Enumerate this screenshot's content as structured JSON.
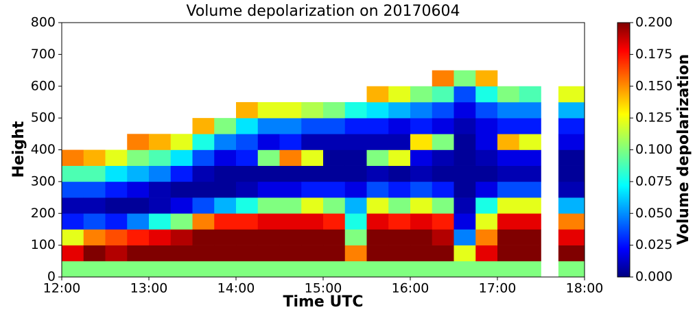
{
  "chart_data": {
    "type": "heatmap",
    "title": "Volume depolarization on 20170604",
    "xlabel": "Time UTC",
    "ylabel": "Height",
    "colorbar_label": "Volume depolarization",
    "colormap": "jet",
    "x_bins": [
      12,
      12.25,
      12.5,
      12.75,
      13,
      13.25,
      13.5,
      13.75,
      14,
      14.25,
      14.5,
      14.75,
      15,
      15.25,
      15.5,
      15.75,
      16,
      16.25,
      16.5,
      16.75,
      17,
      17.25,
      17.5,
      17.7,
      18
    ],
    "y_bins": [
      0,
      50,
      100,
      150,
      200,
      250,
      300,
      350,
      400,
      450,
      500,
      550,
      600,
      650
    ],
    "values": [
      [
        0.1,
        0.18,
        0.12,
        0.03,
        0.01,
        0.04,
        0.09,
        0.15,
        null,
        null,
        null,
        null,
        null
      ],
      [
        0.1,
        0.2,
        0.15,
        0.04,
        0.01,
        0.04,
        0.09,
        0.14,
        null,
        null,
        null,
        null,
        null
      ],
      [
        0.1,
        0.19,
        0.16,
        0.03,
        0.005,
        0.03,
        0.07,
        0.12,
        null,
        null,
        null,
        null,
        null
      ],
      [
        0.1,
        0.2,
        0.17,
        0.05,
        0.005,
        0.02,
        0.06,
        0.1,
        0.15,
        null,
        null,
        null,
        null
      ],
      [
        0.1,
        0.2,
        0.18,
        0.08,
        0.01,
        0.01,
        0.05,
        0.09,
        0.14,
        null,
        null,
        null,
        null
      ],
      [
        0.1,
        0.2,
        0.19,
        0.1,
        0.02,
        0.005,
        0.03,
        0.07,
        0.12,
        null,
        null,
        null,
        null
      ],
      [
        0.1,
        0.2,
        0.2,
        0.15,
        0.04,
        0.005,
        0.01,
        0.04,
        0.08,
        0.14,
        null,
        null,
        null
      ],
      [
        0.1,
        0.2,
        0.2,
        0.17,
        0.06,
        0.005,
        0.005,
        0.02,
        0.05,
        0.1,
        null,
        null,
        null
      ],
      [
        0.1,
        0.2,
        0.2,
        0.17,
        0.08,
        0.01,
        0.005,
        0.03,
        0.04,
        0.07,
        0.14,
        null,
        null
      ],
      [
        0.1,
        0.2,
        0.2,
        0.18,
        0.1,
        0.02,
        0.005,
        0.1,
        0.02,
        0.05,
        0.12,
        null,
        null
      ],
      [
        0.1,
        0.2,
        0.2,
        0.18,
        0.1,
        0.02,
        0.005,
        0.15,
        0.03,
        0.05,
        0.12,
        null,
        null
      ],
      [
        0.1,
        0.2,
        0.2,
        0.18,
        0.12,
        0.03,
        0.005,
        0.12,
        0.01,
        0.04,
        0.11,
        null,
        null
      ],
      [
        0.1,
        0.2,
        0.2,
        0.17,
        0.1,
        0.03,
        0.005,
        0.005,
        0.01,
        0.04,
        0.1,
        null,
        null
      ],
      [
        0.1,
        0.15,
        0.1,
        0.08,
        0.06,
        0.02,
        0.005,
        0.005,
        0.01,
        0.03,
        0.08,
        null,
        null
      ],
      [
        0.1,
        0.2,
        0.2,
        0.18,
        0.12,
        0.04,
        0.01,
        0.1,
        0.01,
        0.03,
        0.07,
        0.14,
        null
      ],
      [
        0.1,
        0.2,
        0.2,
        0.17,
        0.1,
        0.03,
        0.005,
        0.12,
        0.01,
        0.02,
        0.06,
        0.12,
        null
      ],
      [
        0.1,
        0.2,
        0.2,
        0.18,
        0.12,
        0.04,
        0.01,
        0.02,
        0.13,
        0.03,
        0.05,
        0.1,
        null
      ],
      [
        0.1,
        0.2,
        0.19,
        0.17,
        0.1,
        0.03,
        0.005,
        0.01,
        0.1,
        0.02,
        0.04,
        0.09,
        0.15
      ],
      [
        0.1,
        0.12,
        0.05,
        0.02,
        0.01,
        0.005,
        0.005,
        0.005,
        0.005,
        0.01,
        0.02,
        0.04,
        0.1
      ],
      [
        0.1,
        0.18,
        0.15,
        0.12,
        0.08,
        0.02,
        0.005,
        0.01,
        0.02,
        0.02,
        0.04,
        0.08,
        0.14
      ],
      [
        0.1,
        0.2,
        0.2,
        0.18,
        0.12,
        0.04,
        0.01,
        0.02,
        0.14,
        0.03,
        0.05,
        0.1,
        null
      ],
      [
        0.1,
        0.2,
        0.2,
        0.18,
        0.12,
        0.04,
        0.01,
        0.02,
        0.12,
        0.03,
        0.05,
        0.09,
        null
      ],
      [
        null,
        null,
        null,
        null,
        null,
        null,
        null,
        null,
        null,
        null,
        null,
        null,
        null
      ],
      [
        0.1,
        0.2,
        0.18,
        0.15,
        0.06,
        0.01,
        0.005,
        0.005,
        0.02,
        0.03,
        0.06,
        0.12,
        null
      ]
    ],
    "xlim": [
      12,
      18
    ],
    "xticks": [
      {
        "value": 12,
        "label": "12:00"
      },
      {
        "value": 13,
        "label": "13:00"
      },
      {
        "value": 14,
        "label": "14:00"
      },
      {
        "value": 15,
        "label": "15:00"
      },
      {
        "value": 16,
        "label": "16:00"
      },
      {
        "value": 17,
        "label": "17:00"
      },
      {
        "value": 18,
        "label": "18:00"
      }
    ],
    "ylim": [
      0,
      800
    ],
    "yticks": [
      0,
      100,
      200,
      300,
      400,
      500,
      600,
      700,
      800
    ],
    "clim": [
      0,
      0.2
    ],
    "cticks": [
      {
        "value": 0,
        "label": "0.000"
      },
      0.025,
      {
        "value": 0.05,
        "label": "0.050"
      },
      0.075,
      {
        "value": 0.1,
        "label": "0.100"
      },
      0.125,
      {
        "value": 0.15,
        "label": "0.150"
      },
      0.175,
      {
        "value": 0.2,
        "label": "0.200"
      }
    ]
  }
}
